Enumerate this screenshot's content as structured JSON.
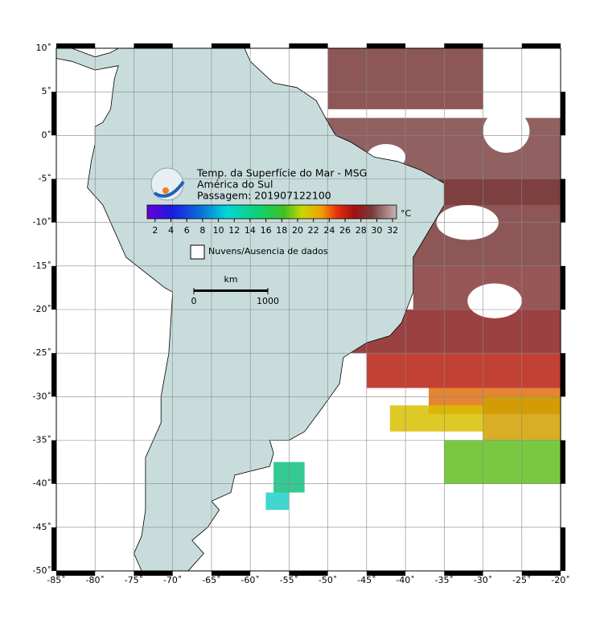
{
  "map": {
    "xlim": [
      -85,
      -20
    ],
    "ylim": [
      -50,
      10
    ],
    "xticks": [
      {
        "value": -85,
        "label": "-85˚"
      },
      {
        "value": -80,
        "label": "-80˚"
      },
      {
        "value": -75,
        "label": "-75˚"
      },
      {
        "value": -70,
        "label": "-70˚"
      },
      {
        "value": -65,
        "label": "-65˚"
      },
      {
        "value": -60,
        "label": "-60˚"
      },
      {
        "value": -55,
        "label": "-55˚"
      },
      {
        "value": -50,
        "label": "-50˚"
      },
      {
        "value": -45,
        "label": "-45˚"
      },
      {
        "value": -40,
        "label": "-40˚"
      },
      {
        "value": -35,
        "label": "-35˚"
      },
      {
        "value": -30,
        "label": "-30˚"
      },
      {
        "value": -25,
        "label": "-25˚"
      },
      {
        "value": -20,
        "label": "-20˚"
      }
    ],
    "yticks": [
      {
        "value": 10,
        "label": "10˚"
      },
      {
        "value": 5,
        "label": "5˚"
      },
      {
        "value": 0,
        "label": "0˚"
      },
      {
        "value": -5,
        "label": "-5˚"
      },
      {
        "value": -10,
        "label": "-10˚"
      },
      {
        "value": -15,
        "label": "-15˚"
      },
      {
        "value": -20,
        "label": "-20˚"
      },
      {
        "value": -25,
        "label": "-25˚"
      },
      {
        "value": -30,
        "label": "-30˚"
      },
      {
        "value": -35,
        "label": "-35˚"
      },
      {
        "value": -40,
        "label": "-40˚"
      },
      {
        "value": -45,
        "label": "-45˚"
      },
      {
        "value": -50,
        "label": "-50˚"
      }
    ]
  },
  "legend": {
    "title_lines": [
      "Temp. da Superfície do Mar - MSG",
      "América do Sul",
      "Passagem: 201907122100"
    ],
    "colorbar": {
      "unit": "°C",
      "clim": [
        1,
        32.5
      ],
      "ticks": [
        2,
        4,
        6,
        8,
        10,
        12,
        14,
        16,
        18,
        20,
        22,
        24,
        26,
        28,
        30,
        32
      ]
    },
    "no_data_label": "Nuvens/Ausencia de dados",
    "scale": {
      "unit": "km",
      "ticks": [
        0,
        1000
      ]
    }
  }
}
